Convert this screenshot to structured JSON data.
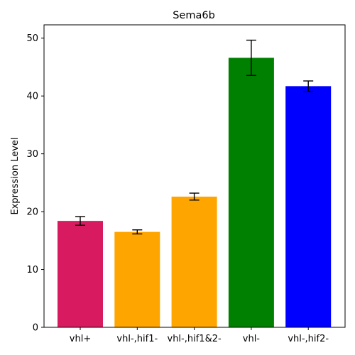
{
  "chart_data": {
    "type": "bar",
    "title": "Sema6b",
    "xlabel": "",
    "ylabel": "Expression Level",
    "ylim": [
      0,
      52.3
    ],
    "yticks": [
      0,
      10,
      20,
      30,
      40,
      50
    ],
    "grid": false,
    "categories": [
      "vhl+",
      "vhl-,hif1-",
      "vhl-,hif1&2-",
      "vhl-",
      "vhl-,hif2-"
    ],
    "values": [
      18.4,
      16.5,
      22.6,
      46.6,
      41.7
    ],
    "errors": [
      0.75,
      0.35,
      0.6,
      3.05,
      0.9
    ],
    "colors": [
      "#d81b60",
      "#ffa500",
      "#ffa500",
      "#008000",
      "#0000ff"
    ]
  }
}
